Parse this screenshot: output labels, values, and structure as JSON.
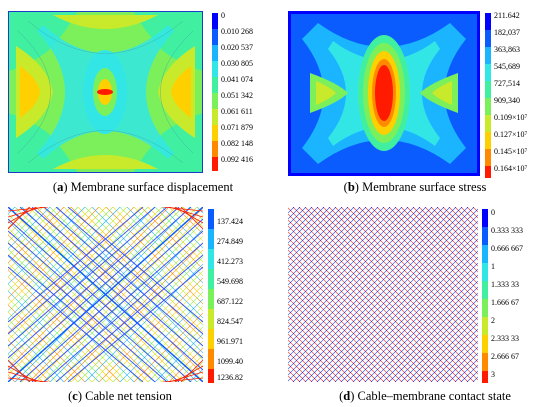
{
  "panels": [
    {
      "letter": "a",
      "caption": "Membrane surface displacement",
      "legend": [
        "0",
        "0.010 268",
        "0.020 537",
        "0.030 805",
        "0.041 074",
        "0.051 342",
        "0.061 611",
        "0.071 879",
        "0.082 148",
        "0.092 416"
      ],
      "colors": [
        "#0000ff",
        "#0a5cff",
        "#1ab4ff",
        "#33e6e6",
        "#40f0a0",
        "#7cf05a",
        "#c8ea2a",
        "#ffd000",
        "#ff8a00",
        "#ff1a00"
      ]
    },
    {
      "letter": "b",
      "caption": "Membrane surface stress",
      "legend": [
        "211.642",
        "182,037",
        "363,863",
        "545,689",
        "727,514",
        "909,340",
        "0.109×10⁷",
        "0.127×10⁷",
        "0.145×10⁷",
        "0.164×10⁷"
      ],
      "colors": [
        "#0000ff",
        "#0a5cff",
        "#1ab4ff",
        "#33e6e6",
        "#40f0a0",
        "#7cf05a",
        "#c8ea2a",
        "#ffd000",
        "#ff8a00",
        "#ff1a00"
      ]
    },
    {
      "letter": "c",
      "caption": "Cable net tension",
      "legend": [
        "137.424",
        "274.849",
        "412.273",
        "549.698",
        "687.122",
        "824.547",
        "961.971",
        "1099.40",
        "1236.82"
      ],
      "colors": [
        "#0a5cff",
        "#1ab4ff",
        "#33e6e6",
        "#40f0a0",
        "#7cf05a",
        "#c8ea2a",
        "#ffd000",
        "#ff8a00",
        "#ff1a00"
      ]
    },
    {
      "letter": "d",
      "caption": "Cable–membrane contact state",
      "legend": [
        "0",
        "0.333 333",
        "0.666 667",
        "1",
        "1.333 33",
        "1.666 67",
        "2",
        "2.333 33",
        "2.666 67",
        "3"
      ],
      "colors": [
        "#0000ff",
        "#0a5cff",
        "#1ab4ff",
        "#33e6e6",
        "#40f0a0",
        "#7cf05a",
        "#c8ea2a",
        "#ffd000",
        "#ff8a00",
        "#ff1a00"
      ]
    }
  ]
}
